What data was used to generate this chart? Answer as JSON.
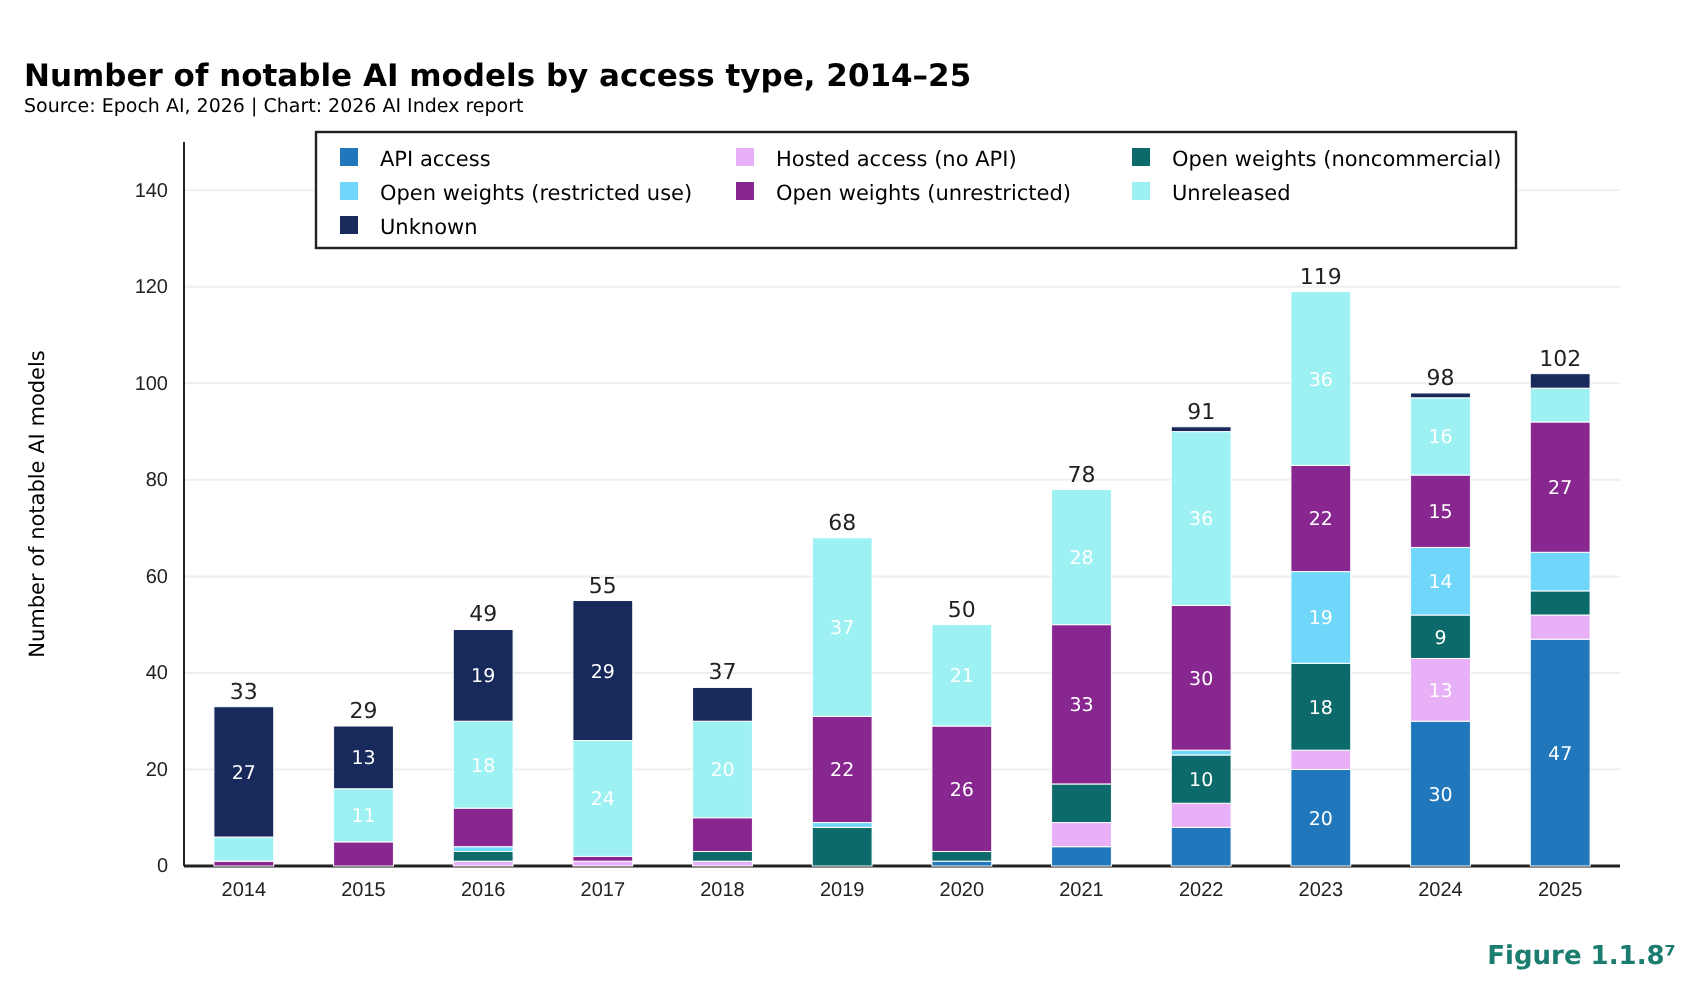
{
  "chart_data": {
    "type": "bar",
    "stacked": true,
    "title": "Number of notable AI models by access type, 2014–25",
    "subtitle": "Source: Epoch AI, 2026 | Chart: 2026 AI Index report",
    "ylabel": "Number of notable AI models",
    "annotations": [
      "Figure 1.1.8⁷"
    ],
    "categories": [
      "2014",
      "2015",
      "2016",
      "2017",
      "2018",
      "2019",
      "2020",
      "2021",
      "2022",
      "2023",
      "2024",
      "2025"
    ],
    "series": [
      {
        "name": "API access",
        "color": "#2077bb",
        "values": [
          0,
          0,
          0,
          0,
          0,
          0,
          1,
          4,
          8,
          20,
          30,
          47
        ],
        "value_labels": [
          null,
          null,
          null,
          null,
          null,
          null,
          null,
          null,
          null,
          "20",
          "30",
          "47"
        ]
      },
      {
        "name": "Hosted access (no API)",
        "color": "#e8b0f7",
        "values": [
          0,
          0,
          1,
          1,
          1,
          0,
          0,
          5,
          5,
          4,
          13,
          5
        ],
        "value_labels": [
          null,
          null,
          null,
          null,
          null,
          null,
          null,
          null,
          null,
          null,
          "13",
          null
        ]
      },
      {
        "name": "Open weights (noncommercial)",
        "color": "#0d6a6a",
        "values": [
          0,
          0,
          2,
          0,
          2,
          8,
          2,
          8,
          10,
          18,
          9,
          5
        ],
        "value_labels": [
          null,
          null,
          null,
          null,
          null,
          null,
          null,
          null,
          "10",
          "18",
          "9",
          null
        ]
      },
      {
        "name": "Open weights (restricted use)",
        "color": "#70d7fb",
        "values": [
          0,
          0,
          1,
          0,
          0,
          1,
          0,
          0,
          1,
          19,
          14,
          8
        ],
        "value_labels": [
          null,
          null,
          null,
          null,
          null,
          null,
          null,
          null,
          null,
          "19",
          "14",
          null
        ]
      },
      {
        "name": "Open weights (unrestricted)",
        "color": "#87278f",
        "values": [
          1,
          5,
          8,
          1,
          7,
          22,
          26,
          33,
          30,
          22,
          15,
          27
        ],
        "value_labels": [
          null,
          null,
          null,
          null,
          null,
          "22",
          "26",
          "33",
          "30",
          "22",
          "15",
          "27"
        ]
      },
      {
        "name": "Unreleased",
        "color": "#9ef1f2",
        "values": [
          5,
          11,
          18,
          24,
          20,
          37,
          21,
          28,
          36,
          36,
          16,
          7
        ],
        "value_labels": [
          null,
          "11",
          "18",
          "24",
          "20",
          "37",
          "21",
          "28",
          "36",
          "36",
          "16",
          null
        ]
      },
      {
        "name": "Unknown",
        "color": "#172a5b",
        "values": [
          27,
          13,
          19,
          29,
          7,
          0,
          0,
          0,
          1,
          0,
          1,
          3
        ],
        "value_labels": [
          "27",
          "13",
          "19",
          "29",
          null,
          null,
          null,
          null,
          null,
          null,
          null,
          null
        ]
      }
    ],
    "totals": [
      "33",
      "29",
      "49",
      "55",
      "37",
      "68",
      "50",
      "78",
      "91",
      "119",
      "98",
      "102"
    ],
    "ylim": [
      0,
      150
    ],
    "yticks": [
      0,
      20,
      40,
      60,
      80,
      100,
      120,
      140
    ],
    "grid": "y",
    "legend": "top"
  }
}
